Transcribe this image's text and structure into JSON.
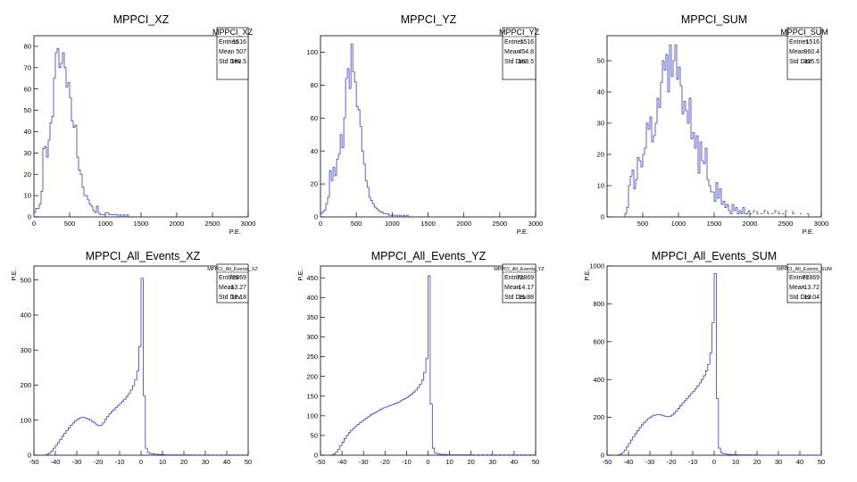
{
  "figure": {
    "background": "#ffffff",
    "line_color": "#3a3ab8"
  },
  "chart_data": [
    {
      "type": "bar",
      "title": "MPPCI_XZ",
      "xlabel": "P.E.",
      "ylabel": "",
      "xlim": [
        0,
        3000
      ],
      "ylim": [
        0,
        85
      ],
      "xticks": [
        0,
        500,
        1000,
        1500,
        2000,
        2500,
        3000
      ],
      "yticks": [
        0,
        10,
        20,
        30,
        40,
        50,
        60,
        70,
        80
      ],
      "stats": {
        "name": "MPPCI_XZ",
        "entries_label": "Entries",
        "entries": "1516",
        "mean_label": "Mean",
        "mean": "507",
        "std_label": "Std Dev",
        "std": "188.5"
      },
      "bin_width": 25,
      "x": [
        0,
        25,
        50,
        75,
        100,
        125,
        150,
        175,
        200,
        225,
        250,
        275,
        300,
        325,
        350,
        375,
        400,
        425,
        450,
        475,
        500,
        525,
        550,
        575,
        600,
        625,
        650,
        675,
        700,
        725,
        750,
        775,
        800,
        825,
        850,
        875,
        900,
        925,
        950,
        975,
        1000,
        1025,
        1050,
        1075,
        1100,
        1125,
        1150,
        1175,
        1200,
        1225,
        1250,
        1275,
        1300
      ],
      "values": [
        2,
        4,
        4,
        6,
        12,
        32,
        33,
        28,
        36,
        44,
        47,
        65,
        77,
        79,
        70,
        72,
        77,
        70,
        61,
        63,
        56,
        45,
        42,
        43,
        28,
        22,
        20,
        14,
        10,
        10,
        8,
        6,
        5,
        3,
        2,
        5,
        2,
        1,
        1,
        1,
        2,
        2,
        1,
        1,
        1,
        1,
        1,
        0,
        1,
        0,
        1,
        0,
        1
      ]
    },
    {
      "type": "bar",
      "title": "MPPCI_YZ",
      "xlabel": "P.E.",
      "ylabel": "",
      "xlim": [
        0,
        3000
      ],
      "ylim": [
        0,
        110
      ],
      "xticks": [
        0,
        500,
        1000,
        1500,
        2000,
        2500,
        3000
      ],
      "yticks": [
        0,
        20,
        40,
        60,
        80,
        100
      ],
      "stats": {
        "name": "MPPCI_YZ",
        "entries_label": "Entries",
        "entries": "1516",
        "mean_label": "Mean",
        "mean": "454.8",
        "std_label": "Std Dev",
        "std": "183.5"
      },
      "bin_width": 25,
      "x": [
        0,
        25,
        50,
        75,
        100,
        125,
        150,
        175,
        200,
        225,
        250,
        275,
        300,
        325,
        350,
        375,
        400,
        425,
        450,
        475,
        500,
        525,
        550,
        575,
        600,
        625,
        650,
        675,
        700,
        725,
        750,
        775,
        800,
        825,
        850,
        875,
        900,
        925,
        950,
        975,
        1000,
        1025,
        1050,
        1075,
        1100,
        1125,
        1150,
        1175,
        1200
      ],
      "values": [
        2,
        3,
        4,
        8,
        12,
        28,
        22,
        30,
        25,
        35,
        38,
        50,
        42,
        60,
        84,
        90,
        78,
        105,
        88,
        82,
        67,
        65,
        55,
        40,
        32,
        22,
        18,
        12,
        10,
        8,
        6,
        5,
        4,
        3,
        3,
        2,
        2,
        2,
        1,
        1,
        1,
        1,
        1,
        0,
        1,
        0,
        1,
        0,
        1
      ]
    },
    {
      "type": "bar",
      "title": "MPPCI_SUM",
      "xlabel": "P.E.",
      "ylabel": "",
      "xlim": [
        0,
        3000
      ],
      "ylim": [
        0,
        58
      ],
      "xticks": [
        500,
        1000,
        1500,
        2000,
        2500,
        3000
      ],
      "yticks": [
        0,
        10,
        20,
        30,
        40,
        50
      ],
      "stats": {
        "name": "MPPCI_SUM",
        "entries_label": "Entries",
        "entries": "1516",
        "mean_label": "Mean",
        "mean": "960.4",
        "std_label": "Std Dev",
        "std": "325.5"
      },
      "bin_width": 25,
      "x": [
        250,
        275,
        300,
        325,
        350,
        375,
        400,
        425,
        450,
        475,
        500,
        525,
        550,
        575,
        600,
        625,
        650,
        675,
        700,
        725,
        750,
        775,
        800,
        825,
        850,
        875,
        900,
        925,
        950,
        975,
        1000,
        1025,
        1050,
        1075,
        1100,
        1125,
        1150,
        1175,
        1200,
        1225,
        1250,
        1275,
        1300,
        1325,
        1350,
        1375,
        1400,
        1425,
        1450,
        1475,
        1500,
        1525,
        1550,
        1575,
        1600,
        1625,
        1650,
        1675,
        1700,
        1725,
        1750,
        1775,
        1800,
        1825,
        1850,
        1875,
        1900,
        1925,
        1950,
        1975,
        2000,
        2050,
        2100,
        2150,
        2200,
        2250,
        2300,
        2350,
        2400,
        2450,
        2500,
        2600,
        2700,
        2800
      ],
      "values": [
        1,
        3,
        10,
        13,
        15,
        9,
        12,
        19,
        18,
        16,
        20,
        22,
        30,
        28,
        32,
        24,
        26,
        30,
        38,
        35,
        43,
        50,
        47,
        52,
        40,
        55,
        45,
        50,
        55,
        44,
        48,
        42,
        33,
        37,
        34,
        30,
        38,
        25,
        27,
        22,
        26,
        14,
        24,
        18,
        17,
        22,
        12,
        10,
        8,
        8,
        5,
        11,
        6,
        9,
        4,
        5,
        3,
        4,
        2,
        1,
        4,
        2,
        3,
        1,
        2,
        1,
        3,
        1,
        1,
        2,
        1,
        2,
        1,
        1,
        2,
        1,
        1,
        2,
        1,
        1,
        2,
        1,
        1,
        1
      ]
    },
    {
      "type": "bar",
      "title": "MPPCI_All_Events_XZ",
      "xlabel": "",
      "ylabel": "P.E.",
      "xlim": [
        -50,
        50
      ],
      "ylim": [
        0,
        540
      ],
      "xticks": [
        -50,
        -40,
        -30,
        -20,
        -10,
        0,
        10,
        20,
        30,
        40,
        50
      ],
      "yticks": [
        0,
        100,
        200,
        300,
        400,
        500
      ],
      "stats": {
        "name": "MPPCI_All_Events_XZ",
        "entries_label": "Entries",
        "entries": "72869",
        "mean_label": "Mean",
        "mean": "-13.27",
        "std_label": "Std Dev",
        "std": "12.18"
      },
      "bin_width": 1,
      "x": [
        -45,
        -44,
        -43,
        -42,
        -41,
        -40,
        -39,
        -38,
        -37,
        -36,
        -35,
        -34,
        -33,
        -32,
        -31,
        -30,
        -29,
        -28,
        -27,
        -26,
        -25,
        -24,
        -23,
        -22,
        -21,
        -20,
        -19,
        -18,
        -17,
        -16,
        -15,
        -14,
        -13,
        -12,
        -11,
        -10,
        -9,
        -8,
        -7,
        -6,
        -5,
        -4,
        -3,
        -2,
        -1,
        0,
        1,
        2,
        3,
        4,
        5,
        6,
        7,
        8,
        9,
        10,
        11,
        12,
        13,
        14,
        15,
        16,
        17,
        18,
        19,
        20,
        21,
        22,
        23,
        24,
        25,
        26,
        27,
        28,
        29,
        30,
        31,
        32,
        33,
        34,
        35,
        36,
        37,
        38,
        39,
        40,
        41,
        42,
        43,
        44,
        45,
        46,
        47,
        48,
        49
      ],
      "values": [
        1,
        3,
        6,
        12,
        20,
        28,
        36,
        45,
        54,
        62,
        70,
        78,
        86,
        92,
        98,
        102,
        106,
        108,
        108,
        106,
        103,
        100,
        96,
        92,
        87,
        84,
        85,
        92,
        102,
        110,
        118,
        125,
        130,
        136,
        142,
        148,
        154,
        160,
        168,
        176,
        186,
        198,
        215,
        240,
        310,
        505,
        170,
        20,
        8,
        5,
        4,
        3,
        3,
        2,
        2,
        2,
        1,
        1,
        1,
        1,
        1,
        1,
        1,
        1,
        1,
        1,
        1,
        1,
        1,
        0,
        1,
        0,
        1,
        0,
        1,
        0,
        1,
        0,
        1,
        0,
        1,
        0,
        1,
        0,
        1,
        0,
        1,
        0,
        1,
        0,
        1,
        0,
        1,
        0,
        1
      ]
    },
    {
      "type": "bar",
      "title": "MPPCI_All_Events_YZ",
      "xlabel": "",
      "ylabel": "P.E.",
      "xlim": [
        -50,
        50
      ],
      "ylim": [
        0,
        480
      ],
      "xticks": [
        -50,
        -40,
        -30,
        -20,
        -10,
        0,
        10,
        20,
        30,
        40,
        50
      ],
      "yticks": [
        0,
        50,
        100,
        150,
        200,
        250,
        300,
        350,
        400,
        450
      ],
      "stats": {
        "name": "MPPCI_All_Events_YZ",
        "entries_label": "Entries",
        "entries": "72869",
        "mean_label": "Mean",
        "mean": "-14.17",
        "std_label": "Std Dev",
        "std": "11.88"
      },
      "bin_width": 1,
      "x": [
        -45,
        -44,
        -43,
        -42,
        -41,
        -40,
        -39,
        -38,
        -37,
        -36,
        -35,
        -34,
        -33,
        -32,
        -31,
        -30,
        -29,
        -28,
        -27,
        -26,
        -25,
        -24,
        -23,
        -22,
        -21,
        -20,
        -19,
        -18,
        -17,
        -16,
        -15,
        -14,
        -13,
        -12,
        -11,
        -10,
        -9,
        -8,
        -7,
        -6,
        -5,
        -4,
        -3,
        -2,
        -1,
        0,
        1,
        2,
        3,
        4,
        5,
        6,
        7,
        8,
        9,
        10,
        11,
        12,
        13,
        14,
        15,
        16,
        17,
        18,
        19,
        20,
        21,
        22,
        23,
        24,
        25,
        26,
        27,
        28,
        29,
        30,
        31,
        32,
        33,
        34,
        35,
        36,
        37,
        38,
        39,
        40,
        41,
        42,
        43,
        44,
        45,
        46,
        47,
        48,
        49
      ],
      "values": [
        1,
        3,
        8,
        15,
        24,
        33,
        42,
        50,
        57,
        63,
        68,
        73,
        78,
        82,
        86,
        90,
        94,
        98,
        102,
        105,
        108,
        111,
        114,
        117,
        120,
        122,
        124,
        126,
        128,
        130,
        132,
        135,
        138,
        141,
        144,
        147,
        151,
        155,
        160,
        165,
        172,
        180,
        190,
        210,
        245,
        455,
        130,
        18,
        6,
        4,
        3,
        2,
        2,
        2,
        1,
        1,
        1,
        1,
        1,
        1,
        1,
        1,
        1,
        1,
        1,
        1,
        1,
        0,
        1,
        0,
        1,
        0,
        1,
        0,
        1,
        0,
        1,
        0,
        1,
        0,
        1,
        0,
        1,
        0,
        1,
        0,
        1,
        0,
        1,
        0,
        1,
        0,
        1,
        0,
        1
      ]
    },
    {
      "type": "bar",
      "title": "MPPCI_All_Events_SUM",
      "xlabel": "",
      "ylabel": "P.E.",
      "xlim": [
        -50,
        50
      ],
      "ylim": [
        0,
        1000
      ],
      "xticks": [
        -50,
        -40,
        -30,
        -20,
        -10,
        0,
        10,
        20,
        30,
        40,
        50
      ],
      "yticks": [
        0,
        200,
        400,
        600,
        800,
        1000
      ],
      "stats": {
        "name": "MPPCI_All_Events_SUM",
        "entries_label": "Entries",
        "entries": "72869",
        "mean_label": "Mean",
        "mean": "-13.72",
        "std_label": "Std Dev",
        "std": "12.04"
      },
      "bin_width": 1,
      "x": [
        -45,
        -44,
        -43,
        -42,
        -41,
        -40,
        -39,
        -38,
        -37,
        -36,
        -35,
        -34,
        -33,
        -32,
        -31,
        -30,
        -29,
        -28,
        -27,
        -26,
        -25,
        -24,
        -23,
        -22,
        -21,
        -20,
        -19,
        -18,
        -17,
        -16,
        -15,
        -14,
        -13,
        -12,
        -11,
        -10,
        -9,
        -8,
        -7,
        -6,
        -5,
        -4,
        -3,
        -2,
        -1,
        0,
        1,
        2,
        3,
        4,
        5,
        6,
        7,
        8,
        9,
        10,
        11,
        12,
        13,
        14,
        15,
        16,
        17,
        18,
        19,
        20,
        21,
        22,
        23,
        24,
        25,
        26,
        27,
        28,
        29,
        30,
        31,
        32,
        33,
        34,
        35,
        36,
        37,
        38,
        39,
        40,
        41,
        42,
        43,
        44,
        45,
        46,
        47,
        48,
        49
      ],
      "values": [
        2,
        6,
        14,
        27,
        44,
        62,
        80,
        98,
        114,
        130,
        146,
        160,
        172,
        184,
        194,
        202,
        208,
        212,
        214,
        214,
        212,
        208,
        206,
        204,
        206,
        212,
        222,
        234,
        248,
        262,
        276,
        288,
        300,
        314,
        326,
        338,
        352,
        366,
        382,
        400,
        420,
        446,
        480,
        540,
        700,
        960,
        300,
        38,
        14,
        9,
        7,
        5,
        4,
        4,
        3,
        3,
        2,
        2,
        2,
        2,
        2,
        2,
        2,
        1,
        2,
        1,
        1,
        1,
        1,
        0,
        1,
        0,
        1,
        0,
        1,
        0,
        1,
        0,
        1,
        0,
        1,
        0,
        1,
        0,
        1,
        0,
        1,
        0,
        1,
        0,
        1,
        0,
        1,
        0,
        1
      ]
    }
  ]
}
